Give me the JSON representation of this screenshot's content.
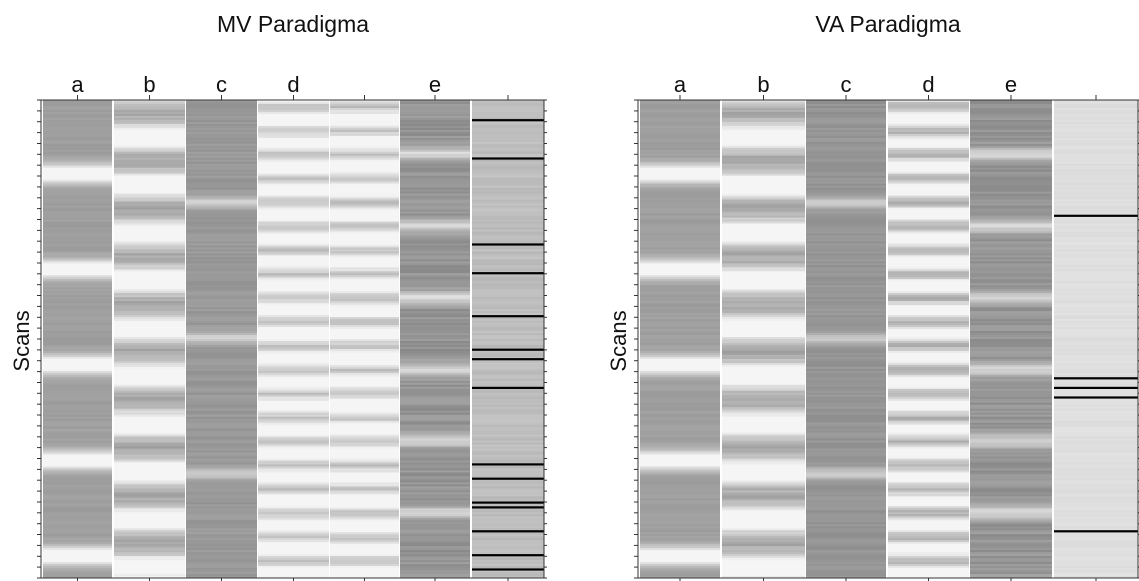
{
  "chart_data": [
    {
      "type": "heatmap",
      "title": "MV Paradigma",
      "ylabel": "Scans",
      "column_labels": [
        "a",
        "b",
        "c",
        "d",
        "",
        "e",
        ""
      ],
      "palette": {
        "low": "#7a7a7a",
        "high": "#f5f5f5",
        "event_line": "#000000",
        "frame": "#333333"
      },
      "columns": [
        {
          "label": "a",
          "base": 0.3,
          "amp": 1.0,
          "period": 12,
          "width": 1.6,
          "jitter": 0.04,
          "seed": 11
        },
        {
          "label": "b",
          "base": 0.35,
          "amp": 1.0,
          "period": 6,
          "width": 2.2,
          "jitter": 0.1,
          "seed": 23
        },
        {
          "label": "c",
          "base": 0.25,
          "amp": 0.45,
          "period": 17,
          "width": 1.0,
          "jitter": 0.06,
          "seed": 37
        },
        {
          "label": "d",
          "base": 0.45,
          "amp": 0.75,
          "period": 3,
          "width": 1.6,
          "jitter": 0.1,
          "seed": 41
        },
        {
          "label": "",
          "base": 0.45,
          "amp": 0.75,
          "period": 3,
          "width": 1.6,
          "jitter": 0.1,
          "seed": 43
        },
        {
          "label": "e",
          "base": 0.22,
          "amp": 0.55,
          "period": 9,
          "width": 1.1,
          "jitter": 0.1,
          "seed": 59
        },
        {
          "label": "",
          "base": 0.55,
          "amp": 0.0,
          "period": 50,
          "width": 1.0,
          "jitter": 0.06,
          "seed": 71,
          "events": [
            0.04,
            0.12,
            0.3,
            0.36,
            0.45,
            0.52,
            0.54,
            0.6,
            0.76,
            0.79,
            0.84,
            0.85,
            0.9,
            0.95,
            0.98
          ]
        }
      ]
    },
    {
      "type": "heatmap",
      "title": "VA Paradigma",
      "ylabel": "Scans",
      "column_labels": [
        "a",
        "b",
        "c",
        "d",
        "e",
        ""
      ],
      "palette": {
        "low": "#7a7a7a",
        "high": "#f5f5f5",
        "event_line": "#000000",
        "frame": "#333333"
      },
      "columns": [
        {
          "label": "a",
          "base": 0.3,
          "amp": 1.0,
          "period": 12,
          "width": 1.6,
          "jitter": 0.04,
          "seed": 13
        },
        {
          "label": "b",
          "base": 0.35,
          "amp": 1.0,
          "period": 6,
          "width": 2.2,
          "jitter": 0.1,
          "seed": 29
        },
        {
          "label": "c",
          "base": 0.22,
          "amp": 0.45,
          "period": 17,
          "width": 1.0,
          "jitter": 0.06,
          "seed": 31
        },
        {
          "label": "d",
          "base": 0.35,
          "amp": 0.9,
          "period": 3,
          "width": 1.4,
          "jitter": 0.12,
          "seed": 47
        },
        {
          "label": "e",
          "base": 0.22,
          "amp": 0.55,
          "period": 9,
          "width": 1.1,
          "jitter": 0.1,
          "seed": 53
        },
        {
          "label": "",
          "base": 0.82,
          "amp": 0.0,
          "period": 50,
          "width": 1.0,
          "jitter": 0.03,
          "seed": 67,
          "events": [
            0.24,
            0.58,
            0.6,
            0.62,
            0.9
          ]
        }
      ]
    }
  ]
}
